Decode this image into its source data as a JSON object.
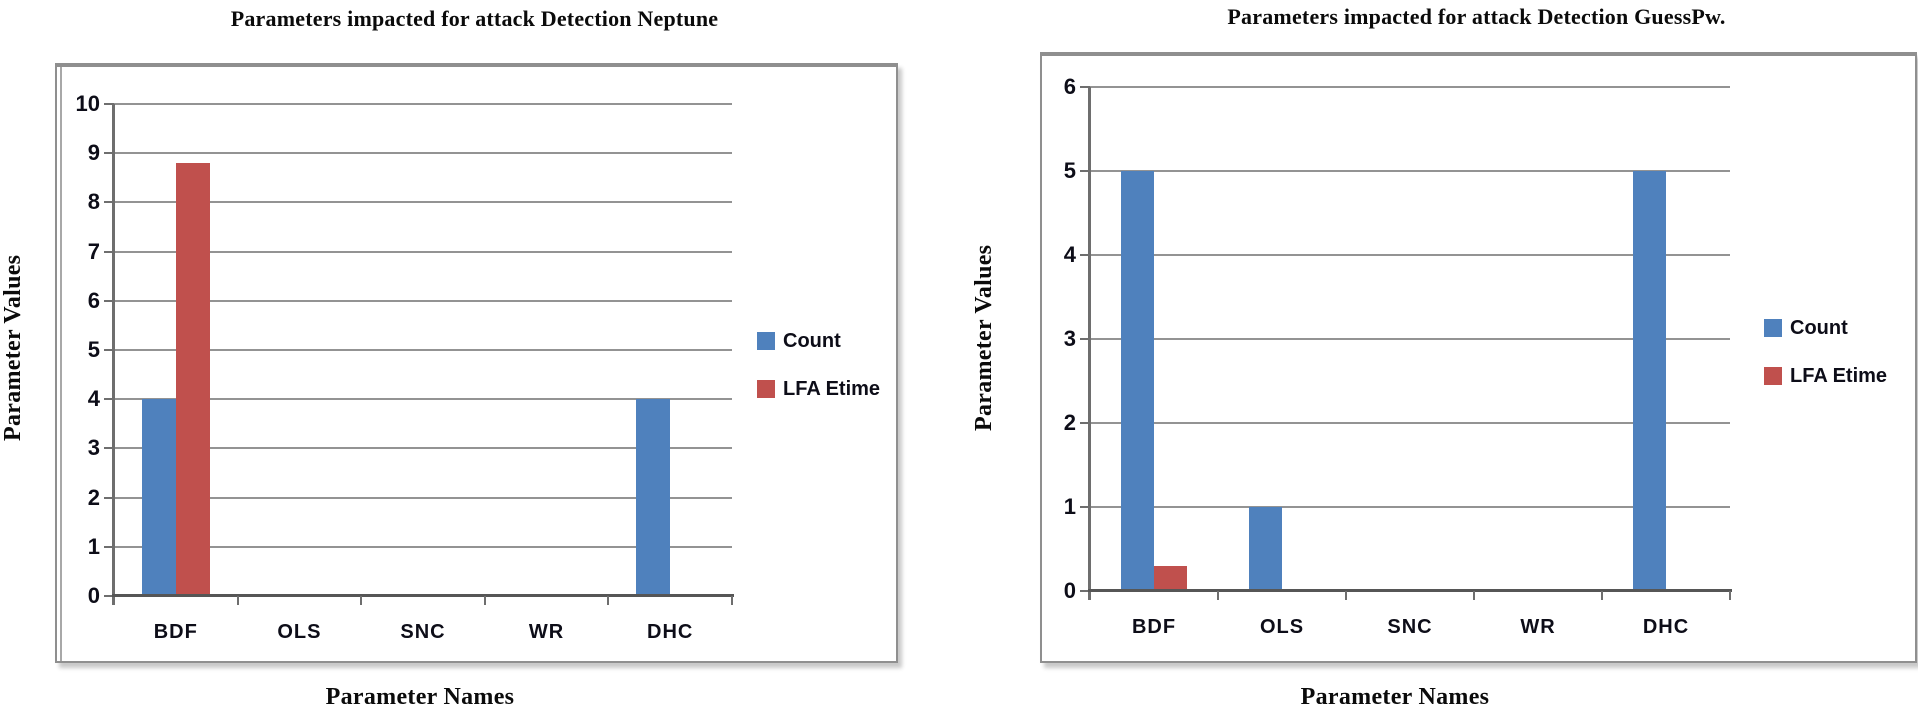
{
  "chart_data": [
    {
      "type": "bar",
      "title": "Parameters impacted for attack Detection Neptune",
      "xlabel": "Parameter Names",
      "ylabel": "Parameter Values",
      "categories": [
        "BDF",
        "OLS",
        "SNC",
        "WR",
        "DHC"
      ],
      "series": [
        {
          "name": "Count",
          "color": "#4F81BD",
          "values": [
            4,
            0,
            0,
            0,
            4
          ]
        },
        {
          "name": "LFA Etime",
          "color": "#C0504D",
          "values": [
            8.8,
            0,
            0,
            0,
            0
          ]
        }
      ],
      "ylim": [
        0,
        10
      ],
      "ytick_step": 1,
      "grid": true,
      "legend_position": "right"
    },
    {
      "type": "bar",
      "title": "Parameters impacted for attack Detection GuessPw.",
      "xlabel": "Parameter Names",
      "ylabel": "Parameter Values",
      "categories": [
        "BDF",
        "OLS",
        "SNC",
        "WR",
        "DHC"
      ],
      "series": [
        {
          "name": "Count",
          "color": "#4F81BD",
          "values": [
            5,
            1,
            0,
            0,
            5
          ]
        },
        {
          "name": "LFA Etime",
          "color": "#C0504D",
          "values": [
            0.3,
            0,
            0,
            0,
            0
          ]
        }
      ],
      "ylim": [
        0,
        6
      ],
      "ytick_step": 1,
      "grid": true,
      "legend_position": "right"
    }
  ]
}
